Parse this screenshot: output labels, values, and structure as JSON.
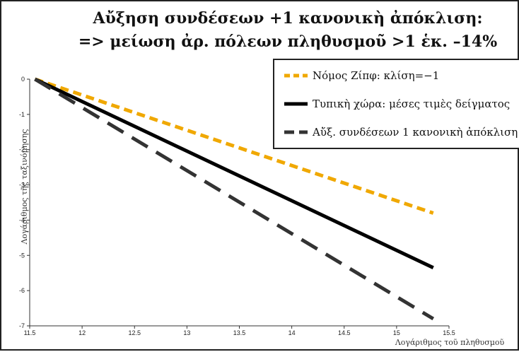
{
  "chart_data": {
    "type": "line",
    "title_line1": "Αὔξηση συνδέσεων +1 κανονικὴ ἀπόκλιση:",
    "title_line2": "=> μείωση ἀρ. πόλεων πληθυσμοῦ >1 ἑκ. –14%",
    "xlabel": "Λογάριθμος τοῦ πληθυσμοῦ",
    "ylabel": "Λογάριθμος τῆς ταξινόμησης",
    "xlim": [
      11.5,
      15.5
    ],
    "ylim": [
      -7,
      0
    ],
    "xticks": [
      "11.5",
      "12",
      "12.5",
      "13",
      "13.5",
      "14",
      "14.5",
      "15",
      "15.5"
    ],
    "yticks": [
      "0",
      "-1",
      "-2",
      "-3",
      "-4",
      "-5",
      "-6",
      "-7"
    ],
    "legend_position": "top-right",
    "series": [
      {
        "name": "Νόμος Ζίπφ: κλίση=−1",
        "color": "#F0A800",
        "dash": "dash-short",
        "x": [
          11.55,
          15.35
        ],
        "y": [
          0,
          -3.8
        ]
      },
      {
        "name": "Τυπικὴ χώρα: μέσες τιμὲς δείγματος",
        "color": "#000000",
        "dash": "solid",
        "x": [
          11.55,
          15.35
        ],
        "y": [
          0,
          -5.35
        ]
      },
      {
        "name": "Αὔξ. συνδέσεων 1 κανονικὴ ἀπόκλιση",
        "color": "#333333",
        "dash": "dash-long",
        "x": [
          11.55,
          15.35
        ],
        "y": [
          0,
          -6.8
        ]
      }
    ]
  }
}
